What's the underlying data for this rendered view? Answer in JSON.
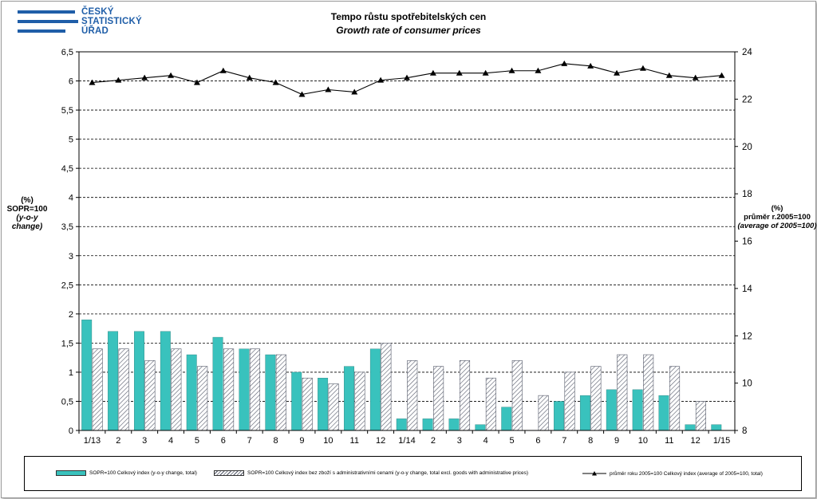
{
  "logo": {
    "lines": [
      "ČESKÝ",
      "STATISTICKÝ",
      "ÚŘAD"
    ]
  },
  "colors": {
    "bars_primary": "#39c2bd",
    "bars_hatched_stroke": "#555a6a",
    "line": "#000000",
    "logo": "#1f5ea8"
  },
  "chart_data": {
    "type": "bar",
    "title": "Tempo růstu spotřebitelských  cen",
    "subtitle": "Growth rate  of consumer prices",
    "y_left_label": [
      "(%)",
      "SOPR=100",
      "(y-o-y change)"
    ],
    "y_right_label": [
      "(%)",
      "průměr r.2005=100",
      "(average of 2005=100)"
    ],
    "categories": [
      "1/13",
      "2",
      "3",
      "4",
      "5",
      "6",
      "7",
      "8",
      "9",
      "10",
      "11",
      "12",
      "1/14",
      "2",
      "3",
      "4",
      "5",
      "6",
      "7",
      "8",
      "9",
      "10",
      "11",
      "12",
      "1/15"
    ],
    "y_left_range": [
      0,
      6.5
    ],
    "y_left_ticks": [
      "0",
      "0,5",
      "1",
      "1,5",
      "2",
      "2,5",
      "3",
      "3,5",
      "4",
      "4,5",
      "5",
      "5,5",
      "6",
      "6,5"
    ],
    "y_right_range": [
      8,
      24
    ],
    "y_right_ticks": [
      "8",
      "10",
      "12",
      "14",
      "16",
      "18",
      "20",
      "22",
      "24"
    ],
    "grid": true,
    "legend_position": "bottom",
    "series": [
      {
        "name": "SOPR=100 Celkový index (y-o-y change, total)",
        "type": "bar",
        "axis": "left",
        "values": [
          1.9,
          1.7,
          1.7,
          1.7,
          1.3,
          1.6,
          1.4,
          1.3,
          1.0,
          0.9,
          1.1,
          1.4,
          0.2,
          0.2,
          0.2,
          0.1,
          0.4,
          0.0,
          0.5,
          0.6,
          0.7,
          0.7,
          0.6,
          0.1,
          0.1
        ]
      },
      {
        "name": "SOPR=100 Celkový index bez zboží s administrativními cenami (y-o-y change, total excl. goods with administrative prices)",
        "type": "bar",
        "axis": "left",
        "values": [
          1.4,
          1.4,
          1.2,
          1.4,
          1.1,
          1.4,
          1.4,
          1.3,
          0.9,
          0.8,
          1.0,
          1.5,
          1.2,
          1.1,
          1.2,
          0.9,
          1.2,
          0.6,
          1.0,
          1.1,
          1.3,
          1.3,
          1.1,
          0.5,
          null
        ]
      },
      {
        "name": "průměr roku 2005=100 Celkový index (average of 2005=100, total)",
        "type": "line",
        "axis": "right",
        "values": [
          22.7,
          22.8,
          22.9,
          23.0,
          22.7,
          23.2,
          22.9,
          22.7,
          22.2,
          22.4,
          22.3,
          22.8,
          22.9,
          23.1,
          23.1,
          23.1,
          23.2,
          23.2,
          23.5,
          23.4,
          23.1,
          23.3,
          23.0,
          22.9,
          23.0
        ]
      }
    ]
  }
}
